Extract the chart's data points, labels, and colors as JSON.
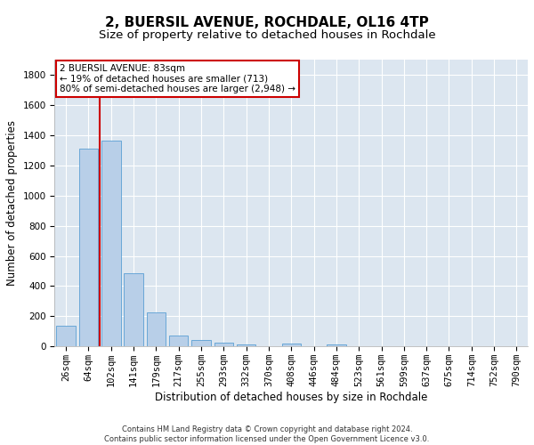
{
  "title": "2, BUERSIL AVENUE, ROCHDALE, OL16 4TP",
  "subtitle": "Size of property relative to detached houses in Rochdale",
  "xlabel": "Distribution of detached houses by size in Rochdale",
  "ylabel": "Number of detached properties",
  "categories": [
    "26sqm",
    "64sqm",
    "102sqm",
    "141sqm",
    "179sqm",
    "217sqm",
    "255sqm",
    "293sqm",
    "332sqm",
    "370sqm",
    "408sqm",
    "446sqm",
    "484sqm",
    "523sqm",
    "561sqm",
    "599sqm",
    "637sqm",
    "675sqm",
    "714sqm",
    "752sqm",
    "790sqm"
  ],
  "values": [
    135,
    1310,
    1365,
    485,
    225,
    75,
    45,
    28,
    15,
    0,
    20,
    0,
    15,
    0,
    0,
    0,
    0,
    0,
    0,
    0,
    0
  ],
  "bar_color": "#b8cfe8",
  "bar_edge_color": "#5a9fd4",
  "annotation_text": "2 BUERSIL AVENUE: 83sqm\n← 19% of detached houses are smaller (713)\n80% of semi-detached houses are larger (2,948) →",
  "annotation_box_color": "#ffffff",
  "annotation_border_color": "#cc0000",
  "vline_color": "#cc0000",
  "ylim": [
    0,
    1900
  ],
  "yticks": [
    0,
    200,
    400,
    600,
    800,
    1000,
    1200,
    1400,
    1600,
    1800
  ],
  "background_color": "#dce6f0",
  "grid_color": "#ffffff",
  "footer_line1": "Contains HM Land Registry data © Crown copyright and database right 2024.",
  "footer_line2": "Contains public sector information licensed under the Open Government Licence v3.0.",
  "title_fontsize": 11,
  "subtitle_fontsize": 9.5,
  "label_fontsize": 8.5,
  "tick_fontsize": 7.5,
  "annotation_fontsize": 7.5,
  "footer_fontsize": 6
}
